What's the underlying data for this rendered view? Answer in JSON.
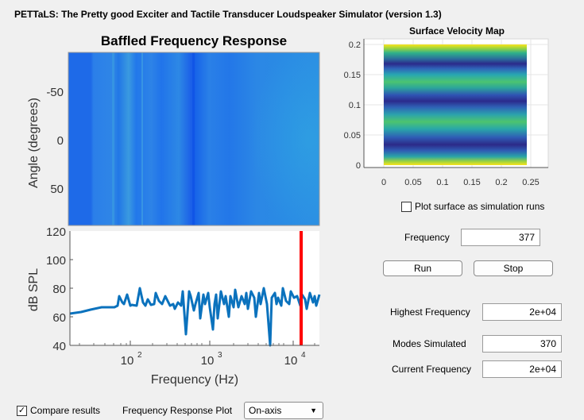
{
  "window": {
    "title": "PETTaLS: The Pretty good Exciter and Tactile Transducer Loudspeaker Simulator (version 1.3)"
  },
  "heatmap": {
    "title": "Baffled Frequency Response",
    "ylabel": "Angle (degrees)",
    "yticks": [
      "-50",
      "0",
      "50"
    ]
  },
  "spl_plot": {
    "ylabel": "dB SPL",
    "xlabel": "Frequency (Hz)",
    "yticks": [
      "120",
      "100",
      "80",
      "60",
      "40"
    ],
    "xticks": [
      {
        "base": "10",
        "exp": "2"
      },
      {
        "base": "10",
        "exp": "3"
      },
      {
        "base": "10",
        "exp": "4"
      }
    ]
  },
  "velocity_map": {
    "title": "Surface Velocity Map",
    "yticks": [
      "0.2",
      "0.15",
      "0.1",
      "0.05",
      "0"
    ],
    "xticks": [
      "0",
      "0.05",
      "0.1",
      "0.15",
      "0.2",
      "0.25"
    ]
  },
  "controls": {
    "plot_surface_label": "Plot surface as simulation runs",
    "plot_surface_checked": false,
    "frequency_label": "Frequency",
    "frequency_value": "377",
    "run_label": "Run",
    "stop_label": "Stop",
    "highest_freq_label": "Highest Frequency",
    "highest_freq_value": "2e+04",
    "modes_label": "Modes Simulated",
    "modes_value": "370",
    "current_freq_label": "Current Frequency",
    "current_freq_value": "2e+04",
    "compare_label": "Compare results",
    "compare_checked": true,
    "response_plot_label": "Frequency Response Plot",
    "response_plot_value": "On-axis"
  },
  "colors": {
    "heatmap_base": "#1f68e8",
    "spl_line": "#0b72bd",
    "marker": "#ff0000"
  }
}
